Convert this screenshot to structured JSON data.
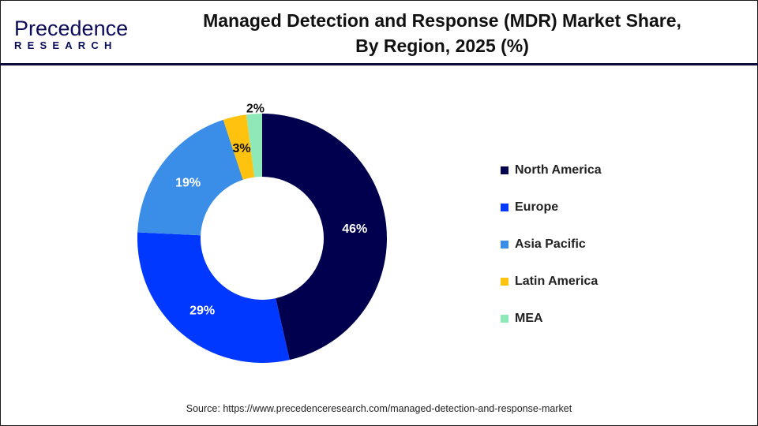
{
  "logo": {
    "text_top": "Precedence",
    "text_bottom": "RESEARCH"
  },
  "title_line1": "Managed Detection and Response (MDR) Market Share,",
  "title_line2": "By Region, 2025 (%)",
  "source": "Source: https://www.precedenceresearch.com/managed-detection-and-response-market",
  "chart_data": {
    "type": "pie",
    "variant": "donut",
    "title": "Managed Detection and Response (MDR) Market Share, By Region, 2025 (%)",
    "categories": [
      "North America",
      "Europe",
      "Asia Pacific",
      "Latin America",
      "MEA"
    ],
    "values": [
      46,
      29,
      19,
      3,
      2
    ],
    "labels": [
      "46%",
      "29%",
      "19%",
      "3%",
      "2%"
    ],
    "colors": [
      "#00004f",
      "#0038ff",
      "#3a8ee8",
      "#ffc20e",
      "#8ee8b8"
    ],
    "label_colors": [
      "#ffffff",
      "#ffffff",
      "#ffffff",
      "#111111",
      "#111111"
    ],
    "legend_position": "right",
    "unit": "%"
  }
}
